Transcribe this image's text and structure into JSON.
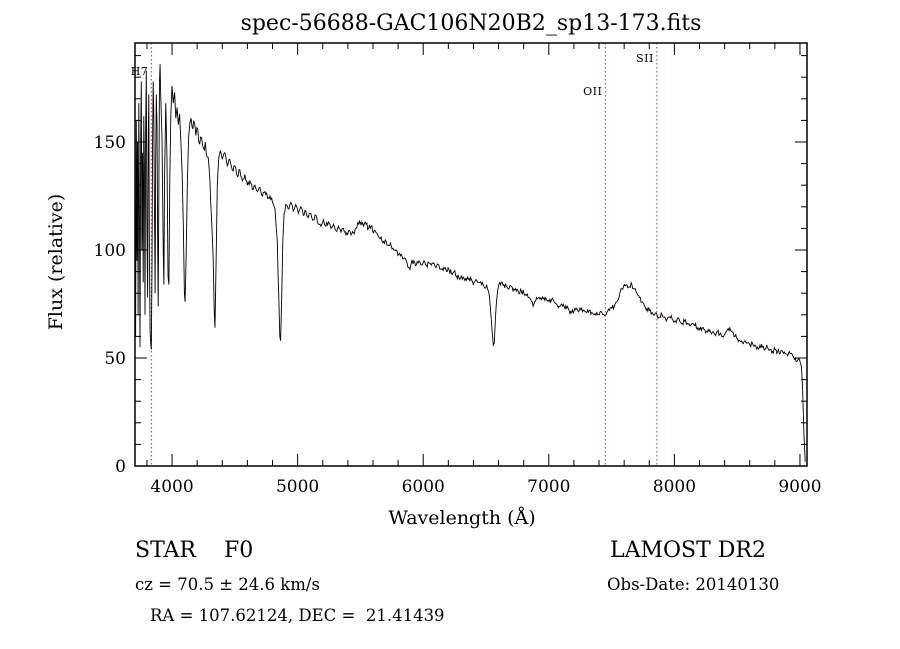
{
  "footer": {
    "class_label": "STAR    F0",
    "survey": "LAMOST DR2",
    "cz": "cz = 70.5 ± 24.6 km/s",
    "obs_date": "Obs-Date: 20140130",
    "coords": "RA = 107.62124, DEC =  21.41439"
  },
  "chart_data": {
    "type": "line",
    "title": "spec-56688-GAC106N20B2_sp13-173.fits",
    "xlabel": "Wavelength (Å)",
    "ylabel": "Flux (relative)",
    "xlim": [
      3705,
      9056
    ],
    "ylim": [
      0,
      196
    ],
    "x_ticks": [
      4000,
      5000,
      6000,
      7000,
      8000,
      9000
    ],
    "y_ticks": [
      0,
      50,
      100,
      150
    ],
    "x_minor_step": 200,
    "y_minor_step": 10,
    "grid": false,
    "line_color": "#000000",
    "reference_color": "#9c3f3f",
    "noise_seed": 7,
    "reference_lines": [
      {
        "label": "H7",
        "wavelength": 3835,
        "label_y": 75
      },
      {
        "label": "OII",
        "wavelength": 7450,
        "label_y": 95
      },
      {
        "label": "SII",
        "wavelength": 7860,
        "label_y": 62
      }
    ],
    "points": [
      [
        3705,
        125
      ],
      [
        3710,
        60
      ],
      [
        3715,
        160
      ],
      [
        3720,
        95
      ],
      [
        3725,
        150
      ],
      [
        3730,
        70
      ],
      [
        3735,
        168
      ],
      [
        3740,
        120
      ],
      [
        3745,
        55
      ],
      [
        3750,
        152
      ],
      [
        3755,
        178
      ],
      [
        3760,
        100
      ],
      [
        3765,
        145
      ],
      [
        3770,
        85
      ],
      [
        3775,
        162
      ],
      [
        3780,
        140
      ],
      [
        3785,
        70
      ],
      [
        3790,
        158
      ],
      [
        3795,
        183
      ],
      [
        3800,
        115
      ],
      [
        3805,
        78
      ],
      [
        3810,
        148
      ],
      [
        3815,
        172
      ],
      [
        3820,
        98
      ],
      [
        3825,
        62
      ],
      [
        3830,
        57
      ],
      [
        3835,
        54
      ],
      [
        3840,
        92
      ],
      [
        3845,
        152
      ],
      [
        3850,
        178
      ],
      [
        3855,
        162
      ],
      [
        3860,
        118
      ],
      [
        3865,
        80
      ],
      [
        3870,
        142
      ],
      [
        3875,
        172
      ],
      [
        3880,
        158
      ],
      [
        3885,
        108
      ],
      [
        3890,
        74
      ],
      [
        3895,
        132
      ],
      [
        3900,
        178
      ],
      [
        3905,
        186
      ],
      [
        3910,
        172
      ],
      [
        3920,
        152
      ],
      [
        3930,
        98
      ],
      [
        3935,
        84
      ],
      [
        3940,
        132
      ],
      [
        3950,
        168
      ],
      [
        3960,
        142
      ],
      [
        3968,
        88
      ],
      [
        3975,
        84
      ],
      [
        3982,
        132
      ],
      [
        3990,
        162
      ],
      [
        4000,
        176
      ],
      [
        4010,
        168
      ],
      [
        4020,
        173
      ],
      [
        4030,
        161
      ],
      [
        4040,
        166
      ],
      [
        4050,
        158
      ],
      [
        4060,
        163
      ],
      [
        4070,
        151
      ],
      [
        4080,
        136
      ],
      [
        4090,
        112
      ],
      [
        4098,
        80
      ],
      [
        4104,
        76
      ],
      [
        4112,
        96
      ],
      [
        4122,
        132
      ],
      [
        4132,
        152
      ],
      [
        4142,
        159
      ],
      [
        4152,
        161
      ],
      [
        4165,
        156
      ],
      [
        4178,
        159
      ],
      [
        4190,
        153
      ],
      [
        4205,
        156
      ],
      [
        4220,
        149
      ],
      [
        4235,
        152
      ],
      [
        4250,
        147
      ],
      [
        4265,
        150
      ],
      [
        4280,
        143
      ],
      [
        4295,
        138
      ],
      [
        4308,
        122
      ],
      [
        4318,
        110
      ],
      [
        4328,
        96
      ],
      [
        4336,
        72
      ],
      [
        4342,
        64
      ],
      [
        4350,
        92
      ],
      [
        4360,
        130
      ],
      [
        4372,
        143
      ],
      [
        4385,
        146
      ],
      [
        4400,
        142
      ],
      [
        4420,
        145
      ],
      [
        4440,
        139
      ],
      [
        4460,
        142
      ],
      [
        4480,
        137
      ],
      [
        4500,
        139
      ],
      [
        4520,
        134
      ],
      [
        4540,
        137
      ],
      [
        4560,
        132
      ],
      [
        4580,
        135
      ],
      [
        4600,
        130
      ],
      [
        4620,
        132
      ],
      [
        4640,
        128
      ],
      [
        4660,
        130
      ],
      [
        4680,
        127
      ],
      [
        4700,
        129
      ],
      [
        4720,
        125
      ],
      [
        4740,
        127
      ],
      [
        4760,
        124
      ],
      [
        4780,
        125
      ],
      [
        4800,
        122
      ],
      [
        4820,
        119
      ],
      [
        4838,
        104
      ],
      [
        4850,
        78
      ],
      [
        4858,
        60
      ],
      [
        4864,
        58
      ],
      [
        4872,
        76
      ],
      [
        4882,
        104
      ],
      [
        4892,
        117
      ],
      [
        4905,
        121
      ],
      [
        4925,
        119
      ],
      [
        4945,
        122
      ],
      [
        4965,
        118
      ],
      [
        4985,
        121
      ],
      [
        5005,
        117
      ],
      [
        5025,
        120
      ],
      [
        5045,
        116
      ],
      [
        5065,
        118
      ],
      [
        5085,
        115
      ],
      [
        5105,
        117
      ],
      [
        5125,
        114
      ],
      [
        5145,
        116
      ],
      [
        5165,
        112
      ],
      [
        5185,
        111
      ],
      [
        5205,
        114
      ],
      [
        5225,
        111
      ],
      [
        5245,
        113
      ],
      [
        5265,
        110
      ],
      [
        5285,
        112
      ],
      [
        5305,
        109
      ],
      [
        5325,
        111
      ],
      [
        5345,
        108
      ],
      [
        5365,
        110
      ],
      [
        5385,
        107
      ],
      [
        5405,
        109
      ],
      [
        5425,
        107
      ],
      [
        5445,
        108
      ],
      [
        5465,
        110
      ],
      [
        5485,
        112
      ],
      [
        5505,
        113
      ],
      [
        5525,
        111
      ],
      [
        5545,
        112
      ],
      [
        5565,
        110
      ],
      [
        5585,
        111
      ],
      [
        5605,
        108
      ],
      [
        5625,
        108
      ],
      [
        5645,
        106
      ],
      [
        5665,
        106
      ],
      [
        5685,
        104
      ],
      [
        5705,
        104
      ],
      [
        5725,
        102
      ],
      [
        5745,
        102
      ],
      [
        5765,
        100
      ],
      [
        5785,
        100
      ],
      [
        5805,
        98
      ],
      [
        5825,
        98
      ],
      [
        5845,
        96
      ],
      [
        5865,
        95
      ],
      [
        5885,
        92
      ],
      [
        5895,
        91
      ],
      [
        5905,
        94
      ],
      [
        5925,
        95
      ],
      [
        5945,
        93
      ],
      [
        5965,
        95
      ],
      [
        5985,
        93
      ],
      [
        6005,
        95
      ],
      [
        6025,
        93
      ],
      [
        6045,
        94
      ],
      [
        6065,
        93
      ],
      [
        6085,
        94
      ],
      [
        6105,
        92
      ],
      [
        6125,
        93
      ],
      [
        6145,
        91
      ],
      [
        6165,
        92
      ],
      [
        6185,
        90
      ],
      [
        6205,
        91
      ],
      [
        6225,
        89
      ],
      [
        6245,
        90
      ],
      [
        6265,
        88
      ],
      [
        6285,
        87
      ],
      [
        6305,
        88
      ],
      [
        6325,
        87
      ],
      [
        6345,
        86
      ],
      [
        6365,
        87
      ],
      [
        6385,
        86
      ],
      [
        6405,
        85
      ],
      [
        6425,
        86
      ],
      [
        6445,
        85
      ],
      [
        6465,
        84
      ],
      [
        6485,
        83
      ],
      [
        6505,
        84
      ],
      [
        6520,
        81
      ],
      [
        6535,
        73
      ],
      [
        6548,
        63
      ],
      [
        6558,
        56
      ],
      [
        6566,
        57
      ],
      [
        6575,
        68
      ],
      [
        6588,
        79
      ],
      [
        6602,
        84
      ],
      [
        6622,
        85
      ],
      [
        6642,
        84
      ],
      [
        6662,
        83
      ],
      [
        6682,
        82
      ],
      [
        6702,
        83
      ],
      [
        6722,
        82
      ],
      [
        6742,
        81
      ],
      [
        6762,
        80
      ],
      [
        6782,
        81
      ],
      [
        6802,
        80
      ],
      [
        6822,
        79
      ],
      [
        6842,
        78
      ],
      [
        6862,
        76
      ],
      [
        6875,
        74
      ],
      [
        6888,
        76
      ],
      [
        6902,
        78
      ],
      [
        6922,
        78
      ],
      [
        6942,
        77
      ],
      [
        6962,
        78
      ],
      [
        6982,
        77
      ],
      [
        7002,
        76
      ],
      [
        7022,
        77
      ],
      [
        7042,
        76
      ],
      [
        7062,
        75
      ],
      [
        7082,
        74
      ],
      [
        7102,
        75
      ],
      [
        7122,
        74
      ],
      [
        7142,
        73
      ],
      [
        7162,
        72
      ],
      [
        7182,
        71
      ],
      [
        7202,
        72
      ],
      [
        7222,
        73
      ],
      [
        7242,
        72
      ],
      [
        7262,
        73
      ],
      [
        7282,
        72
      ],
      [
        7302,
        71
      ],
      [
        7322,
        72
      ],
      [
        7342,
        71
      ],
      [
        7362,
        70
      ],
      [
        7382,
        71
      ],
      [
        7402,
        70
      ],
      [
        7422,
        71
      ],
      [
        7442,
        70
      ],
      [
        7462,
        71
      ],
      [
        7482,
        72
      ],
      [
        7502,
        73
      ],
      [
        7522,
        74
      ],
      [
        7542,
        76
      ],
      [
        7562,
        79
      ],
      [
        7582,
        82
      ],
      [
        7602,
        84
      ],
      [
        7622,
        84
      ],
      [
        7642,
        83
      ],
      [
        7662,
        84
      ],
      [
        7682,
        82
      ],
      [
        7702,
        80
      ],
      [
        7722,
        78
      ],
      [
        7742,
        76
      ],
      [
        7762,
        74
      ],
      [
        7782,
        73
      ],
      [
        7802,
        72
      ],
      [
        7822,
        71
      ],
      [
        7842,
        70
      ],
      [
        7862,
        70
      ],
      [
        7882,
        69
      ],
      [
        7902,
        70
      ],
      [
        7922,
        69
      ],
      [
        7942,
        68
      ],
      [
        7962,
        69
      ],
      [
        7982,
        68
      ],
      [
        8002,
        67
      ],
      [
        8022,
        68
      ],
      [
        8042,
        67
      ],
      [
        8062,
        66
      ],
      [
        8082,
        67
      ],
      [
        8102,
        66
      ],
      [
        8122,
        65
      ],
      [
        8142,
        66
      ],
      [
        8162,
        65
      ],
      [
        8182,
        64
      ],
      [
        8202,
        63
      ],
      [
        8222,
        64
      ],
      [
        8242,
        63
      ],
      [
        8262,
        62
      ],
      [
        8282,
        63
      ],
      [
        8302,
        62
      ],
      [
        8322,
        61
      ],
      [
        8342,
        62
      ],
      [
        8362,
        61
      ],
      [
        8382,
        60
      ],
      [
        8402,
        61
      ],
      [
        8422,
        63
      ],
      [
        8442,
        64
      ],
      [
        8462,
        62
      ],
      [
        8482,
        60
      ],
      [
        8502,
        59
      ],
      [
        8522,
        58
      ],
      [
        8542,
        57
      ],
      [
        8562,
        58
      ],
      [
        8582,
        57
      ],
      [
        8602,
        56
      ],
      [
        8622,
        57
      ],
      [
        8642,
        56
      ],
      [
        8662,
        55
      ],
      [
        8682,
        56
      ],
      [
        8702,
        55
      ],
      [
        8722,
        54
      ],
      [
        8742,
        55
      ],
      [
        8762,
        54
      ],
      [
        8782,
        53
      ],
      [
        8802,
        54
      ],
      [
        8822,
        53
      ],
      [
        8842,
        52
      ],
      [
        8862,
        53
      ],
      [
        8882,
        52
      ],
      [
        8902,
        51
      ],
      [
        8922,
        52
      ],
      [
        8942,
        51
      ],
      [
        8962,
        50
      ],
      [
        8982,
        49
      ],
      [
        9002,
        48
      ],
      [
        9012,
        46
      ],
      [
        9022,
        34
      ],
      [
        9032,
        14
      ],
      [
        9042,
        2
      ]
    ]
  }
}
